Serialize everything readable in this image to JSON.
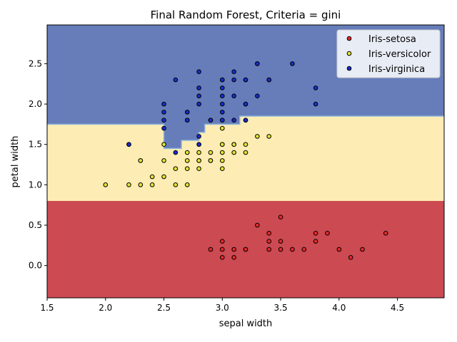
{
  "chart_data": {
    "type": "scatter",
    "title": "Final Random Forest, Criteria = gini",
    "xlabel": "sepal width",
    "ylabel": "petal width",
    "xlim": [
      1.5,
      4.9
    ],
    "ylim": [
      -0.4,
      2.98
    ],
    "xticks": [
      "1.5",
      "2.0",
      "2.5",
      "3.0",
      "3.5",
      "4.0",
      "4.5"
    ],
    "yticks": [
      "0.0",
      "0.5",
      "1.0",
      "1.5",
      "2.0",
      "2.5"
    ],
    "grid": false,
    "legend_position": "top-right",
    "background_regions": [
      {
        "class": "Iris-setosa",
        "color": "#cc4a52",
        "y_range": [
          -0.4,
          0.8
        ]
      },
      {
        "class": "Iris-versicolor",
        "color": "#fdedb5",
        "y_range": [
          0.8,
          "boundary"
        ]
      },
      {
        "class": "Iris-virginica",
        "color": "#667db9",
        "y_range": [
          "boundary",
          2.98
        ]
      }
    ],
    "decision_boundary": [
      [
        1.5,
        1.75
      ],
      [
        2.5,
        1.75
      ],
      [
        2.5,
        1.45
      ],
      [
        2.65,
        1.45
      ],
      [
        2.65,
        1.55
      ],
      [
        2.8,
        1.55
      ],
      [
        2.8,
        1.65
      ],
      [
        2.85,
        1.65
      ],
      [
        2.85,
        1.75
      ],
      [
        3.15,
        1.75
      ],
      [
        3.15,
        1.85
      ],
      [
        4.9,
        1.85
      ]
    ],
    "series": [
      {
        "name": "Iris-setosa",
        "color": "#e8282b",
        "points": [
          [
            3.5,
            0.2
          ],
          [
            3.0,
            0.2
          ],
          [
            3.2,
            0.2
          ],
          [
            3.1,
            0.2
          ],
          [
            3.6,
            0.2
          ],
          [
            3.9,
            0.4
          ],
          [
            3.4,
            0.3
          ],
          [
            3.4,
            0.2
          ],
          [
            2.9,
            0.2
          ],
          [
            3.1,
            0.1
          ],
          [
            3.7,
            0.2
          ],
          [
            3.0,
            0.1
          ],
          [
            4.0,
            0.2
          ],
          [
            4.4,
            0.4
          ],
          [
            3.8,
            0.3
          ],
          [
            3.8,
            0.4
          ],
          [
            3.3,
            0.5
          ],
          [
            3.5,
            0.6
          ],
          [
            3.4,
            0.4
          ],
          [
            4.1,
            0.1
          ],
          [
            4.2,
            0.2
          ],
          [
            3.2,
            0.2
          ],
          [
            3.5,
            0.3
          ],
          [
            3.0,
            0.3
          ]
        ]
      },
      {
        "name": "Iris-versicolor",
        "color": "#e3e436",
        "points": [
          [
            3.2,
            1.4
          ],
          [
            3.2,
            1.5
          ],
          [
            3.1,
            1.5
          ],
          [
            2.3,
            1.3
          ],
          [
            2.8,
            1.5
          ],
          [
            2.8,
            1.3
          ],
          [
            3.3,
            1.6
          ],
          [
            2.4,
            1.0
          ],
          [
            2.9,
            1.3
          ],
          [
            2.7,
            1.4
          ],
          [
            2.0,
            1.0
          ],
          [
            3.0,
            1.5
          ],
          [
            2.2,
            1.0
          ],
          [
            2.9,
            1.4
          ],
          [
            2.9,
            1.3
          ],
          [
            3.1,
            1.4
          ],
          [
            3.0,
            1.5
          ],
          [
            2.7,
            1.0
          ],
          [
            2.2,
            1.5
          ],
          [
            2.5,
            1.1
          ],
          [
            3.2,
            1.8
          ],
          [
            2.8,
            1.3
          ],
          [
            2.5,
            1.5
          ],
          [
            2.8,
            1.2
          ],
          [
            3.0,
            1.4
          ],
          [
            2.8,
            1.4
          ],
          [
            3.0,
            1.7
          ],
          [
            2.6,
            1.0
          ],
          [
            2.4,
            1.1
          ],
          [
            2.7,
            1.2
          ],
          [
            3.4,
            1.6
          ],
          [
            3.1,
            1.5
          ],
          [
            2.3,
            1.0
          ],
          [
            3.0,
            1.3
          ],
          [
            2.5,
            1.3
          ],
          [
            2.6,
            1.2
          ],
          [
            2.3,
            1.3
          ],
          [
            2.7,
            1.3
          ],
          [
            3.0,
            1.2
          ]
        ]
      },
      {
        "name": "Iris-virginica",
        "color": "#1b2ccc",
        "points": [
          [
            3.3,
            2.5
          ],
          [
            2.7,
            1.9
          ],
          [
            3.0,
            2.1
          ],
          [
            2.9,
            1.8
          ],
          [
            3.0,
            2.2
          ],
          [
            2.5,
            1.7
          ],
          [
            2.9,
            1.8
          ],
          [
            2.5,
            1.8
          ],
          [
            3.6,
            2.5
          ],
          [
            3.2,
            2.0
          ],
          [
            2.7,
            1.9
          ],
          [
            2.8,
            2.1
          ],
          [
            2.5,
            2.0
          ],
          [
            2.8,
            2.4
          ],
          [
            3.2,
            2.3
          ],
          [
            3.0,
            1.8
          ],
          [
            3.8,
            2.2
          ],
          [
            2.6,
            2.3
          ],
          [
            2.2,
            1.5
          ],
          [
            2.8,
            2.0
          ],
          [
            2.7,
            1.8
          ],
          [
            3.3,
            2.1
          ],
          [
            3.2,
            1.8
          ],
          [
            3.0,
            1.8
          ],
          [
            2.8,
            1.6
          ],
          [
            3.0,
            1.9
          ],
          [
            2.8,
            2.2
          ],
          [
            3.8,
            2.0
          ],
          [
            2.8,
            1.5
          ],
          [
            2.6,
            1.4
          ],
          [
            3.4,
            2.3
          ],
          [
            3.1,
            2.4
          ],
          [
            3.1,
            1.8
          ],
          [
            3.1,
            2.1
          ],
          [
            3.1,
            2.3
          ],
          [
            3.2,
            2.3
          ],
          [
            3.3,
            2.5
          ],
          [
            3.0,
            2.3
          ],
          [
            2.5,
            1.9
          ],
          [
            3.0,
            2.0
          ],
          [
            3.4,
            2.3
          ],
          [
            2.7,
            1.8
          ],
          [
            3.2,
            2.0
          ],
          [
            3.0,
            2.3
          ]
        ]
      }
    ]
  }
}
